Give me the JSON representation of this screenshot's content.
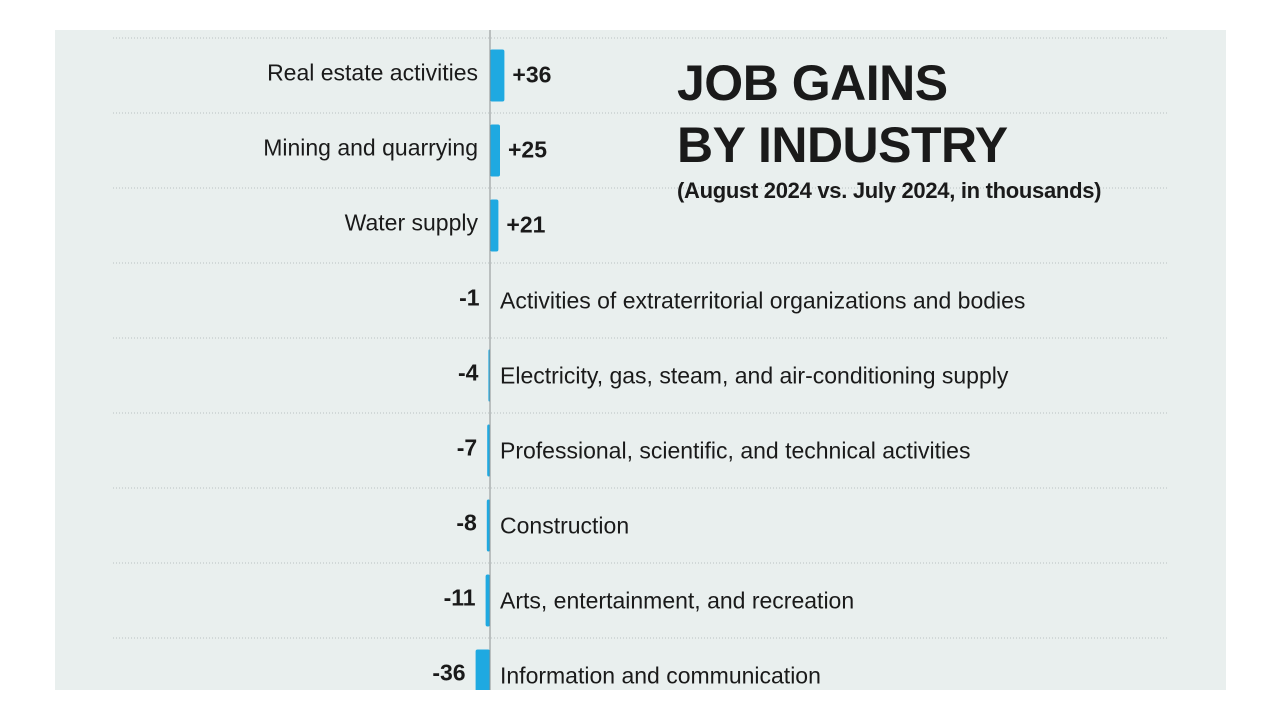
{
  "chart_data": {
    "type": "bar",
    "orientation": "horizontal",
    "title": "JOB GAINS BY INDUSTRY",
    "subtitle": "(August 2024 vs. July 2024, in thousands)",
    "categories": [
      "Real estate activities",
      "Mining and quarrying",
      "Water supply",
      "Activities of extraterritorial organizations and bodies",
      "Electricity, gas, steam, and air-conditioning supply",
      "Professional, scientific, and technical activities",
      "Construction",
      "Arts, entertainment, and recreation",
      "Information and communication"
    ],
    "values": [
      36,
      25,
      21,
      -1,
      -4,
      -7,
      -8,
      -11,
      -36
    ],
    "value_labels": [
      "+36",
      "+25",
      "+21",
      "-1",
      "-4",
      "-7",
      "-8",
      "-11",
      "-36"
    ],
    "color": "#1fa9e1"
  }
}
